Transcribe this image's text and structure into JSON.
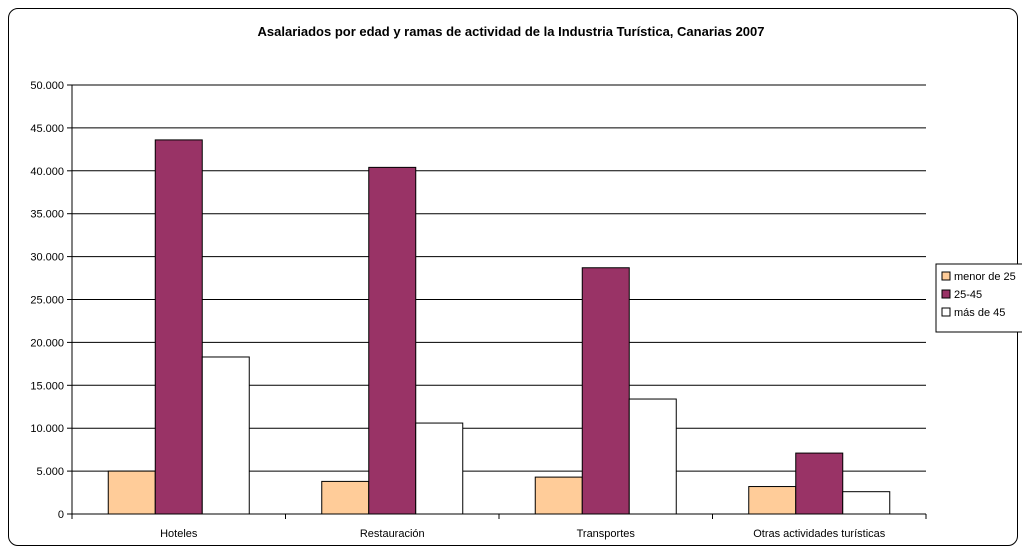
{
  "chart_data": {
    "type": "bar",
    "title": "Asalariados por edad y ramas de actividad de la Industria Turística, Canarias 2007",
    "xlabel": "",
    "ylabel": "",
    "categories": [
      "Hoteles",
      "Restauración",
      "Transportes",
      "Otras actividades turísticas"
    ],
    "series": [
      {
        "name": "menor de 25",
        "values": [
          5000,
          3800,
          4300,
          3200
        ],
        "color": "#FFCC99"
      },
      {
        "name": "25-45",
        "values": [
          43600,
          40400,
          28700,
          7100
        ],
        "color": "#993366"
      },
      {
        "name": "más de 45",
        "values": [
          18300,
          10600,
          13400,
          2600
        ],
        "color": "#FFFFFF"
      }
    ],
    "ylim": [
      0,
      50000
    ],
    "yticks": [
      0,
      5000,
      10000,
      15000,
      20000,
      25000,
      30000,
      35000,
      40000,
      45000,
      50000
    ],
    "ytick_labels": [
      "0",
      "5.000",
      "10.000",
      "15.000",
      "20.000",
      "25.000",
      "30.000",
      "35.000",
      "40.000",
      "45.000",
      "50.000"
    ],
    "grid": true,
    "legend_position": "right"
  }
}
